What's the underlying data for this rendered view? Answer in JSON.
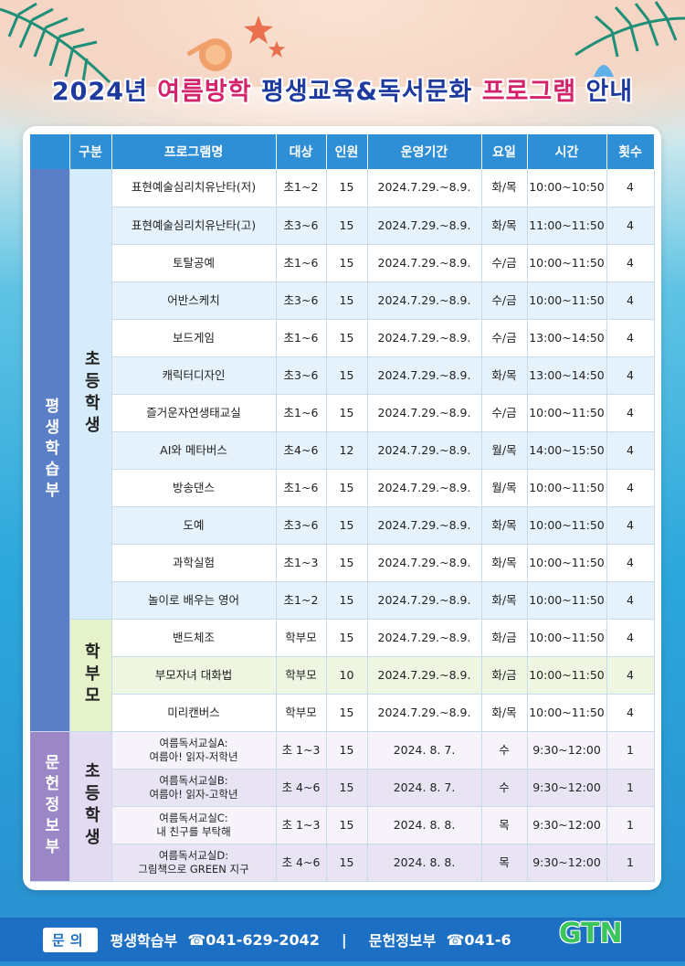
{
  "title": {
    "prefix": "2024년 ",
    "highlight1": "여름방학",
    "middle": " 평생교육&독서문화 ",
    "highlight2": "프로그램",
    "suffix": " 안내"
  },
  "headers": [
    "구분",
    "프로그램명",
    "대상",
    "인원",
    "운영기간",
    "요일",
    "시간",
    "횟수"
  ],
  "groups": {
    "dept_lifelong": "평생학습부",
    "dept_library": "문헌정보부",
    "elementary": "초등학생",
    "parents": "학부모",
    "library_elementary": "초등학생"
  },
  "rows_elementary": [
    {
      "name": "표현예술심리치유난타(저)",
      "target": "초1~2",
      "count": "15",
      "period": "2024.7.29.~8.9.",
      "day": "화/목",
      "time": "10:00~10:50",
      "times": "4"
    },
    {
      "name": "표현예술심리치유난타(고)",
      "target": "초3~6",
      "count": "15",
      "period": "2024.7.29.~8.9.",
      "day": "화/목",
      "time": "11:00~11:50",
      "times": "4"
    },
    {
      "name": "토탈공예",
      "target": "초1~6",
      "count": "15",
      "period": "2024.7.29.~8.9.",
      "day": "수/금",
      "time": "10:00~11:50",
      "times": "4"
    },
    {
      "name": "어반스케치",
      "target": "초3~6",
      "count": "15",
      "period": "2024.7.29.~8.9.",
      "day": "수/금",
      "time": "10:00~11:50",
      "times": "4"
    },
    {
      "name": "보드게임",
      "target": "초1~6",
      "count": "15",
      "period": "2024.7.29.~8.9.",
      "day": "수/금",
      "time": "13:00~14:50",
      "times": "4"
    },
    {
      "name": "캐릭터디자인",
      "target": "초3~6",
      "count": "15",
      "period": "2024.7.29.~8.9.",
      "day": "화/목",
      "time": "13:00~14:50",
      "times": "4"
    },
    {
      "name": "즐거운자연생태교실",
      "target": "초1~6",
      "count": "15",
      "period": "2024.7.29.~8.9.",
      "day": "수/금",
      "time": "10:00~11:50",
      "times": "4"
    },
    {
      "name": "AI와 메타버스",
      "target": "초4~6",
      "count": "12",
      "period": "2024.7.29.~8.9.",
      "day": "월/목",
      "time": "14:00~15:50",
      "times": "4"
    },
    {
      "name": "방송댄스",
      "target": "초1~6",
      "count": "15",
      "period": "2024.7.29.~8.9.",
      "day": "월/목",
      "time": "10:00~11:50",
      "times": "4"
    },
    {
      "name": "도예",
      "target": "초3~6",
      "count": "15",
      "period": "2024.7.29.~8.9.",
      "day": "화/목",
      "time": "10:00~11:50",
      "times": "4"
    },
    {
      "name": "과학실험",
      "target": "초1~3",
      "count": "15",
      "period": "2024.7.29.~8.9.",
      "day": "화/목",
      "time": "10:00~11:50",
      "times": "4"
    },
    {
      "name": "놀이로 배우는 영어",
      "target": "초1~2",
      "count": "15",
      "period": "2024.7.29.~8.9.",
      "day": "화/목",
      "time": "10:00~11:50",
      "times": "4"
    }
  ],
  "rows_parents": [
    {
      "name": "밴드체조",
      "target": "학부모",
      "count": "15",
      "period": "2024.7.29.~8.9.",
      "day": "화/금",
      "time": "10:00~11:50",
      "times": "4"
    },
    {
      "name": "부모자녀 대화법",
      "target": "학부모",
      "count": "10",
      "period": "2024.7.29.~8.9.",
      "day": "화/금",
      "time": "10:00~11:50",
      "times": "4"
    },
    {
      "name": "미리캔버스",
      "target": "학부모",
      "count": "15",
      "period": "2024.7.29.~8.9.",
      "day": "화/목",
      "time": "10:00~11:50",
      "times": "4"
    }
  ],
  "rows_library": [
    {
      "name1": "여름독서교실A:",
      "name2": "여름아! 읽자-저학년",
      "target": "초 1~3",
      "count": "15",
      "period": "2024. 8. 7.",
      "day": "수",
      "time": "9:30~12:00",
      "times": "1"
    },
    {
      "name1": "여름독서교실B:",
      "name2": "여름아! 읽자-고학년",
      "target": "초 4~6",
      "count": "15",
      "period": "2024. 8. 7.",
      "day": "수",
      "time": "9:30~12:00",
      "times": "1"
    },
    {
      "name1": "여름독서교실C:",
      "name2": "내 친구를 부탁해",
      "target": "초 1~3",
      "count": "15",
      "period": "2024. 8. 8.",
      "day": "목",
      "time": "9:30~12:00",
      "times": "1"
    },
    {
      "name1": "여름독서교실D:",
      "name2": "그림책으로 GREEN 지구",
      "target": "초 4~6",
      "count": "15",
      "period": "2024. 8. 8.",
      "day": "목",
      "time": "9:30~12:00",
      "times": "1"
    }
  ],
  "footer": {
    "tag": "문의",
    "dept1": "평생학습부",
    "phone1": "☎041-629-2042",
    "divider": "|",
    "dept2": "문헌정보부",
    "phone2": "☎041-6"
  },
  "logo": "GTN",
  "colors": {
    "header_blue": "#2f8fd6",
    "title_blue": "#1e3a9e",
    "title_pink": "#d2236b",
    "footer_blue": "#1d6fc3"
  }
}
